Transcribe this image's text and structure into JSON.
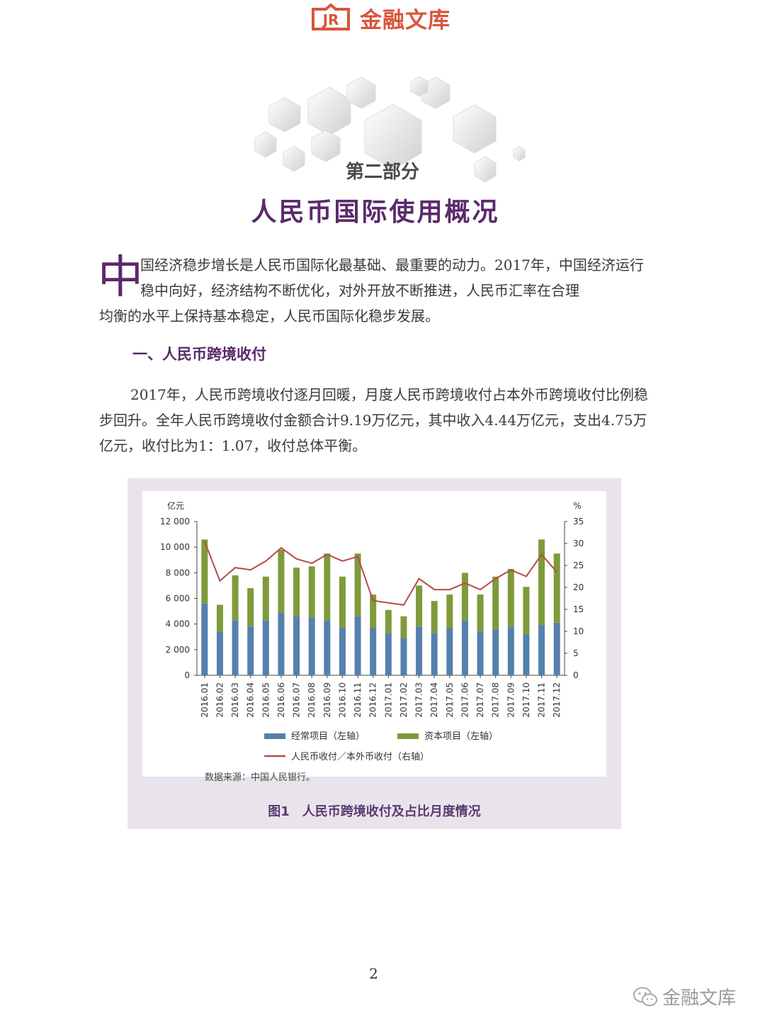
{
  "header": {
    "logo_mark": "JR",
    "logo_text": "金融文库",
    "logo_color": "#d9553a"
  },
  "part_label": "第二部分",
  "section_title": "人民币国际使用概况",
  "intro": {
    "dropcap": "中",
    "line_a": "国经济稳步增长是人民币国际化最基础、最重要的动力。2017年，中国经济运行稳中向好，经济结构不断优化，对外开放不断推进，人民币汇率在合理",
    "line_b": "均衡的水平上保持基本稳定，人民币国际化稳步发展。"
  },
  "subsection_title": "一、人民币跨境收付",
  "body_paragraph": "2017年，人民币跨境收付逐月回暖，月度人民币跨境收付占本外币跨境收付比例稳步回升。全年人民币跨境收付金额合计9.19万亿元，其中收入4.44万亿元，支出4.75万亿元，收付比为1：1.07，收付总体平衡。",
  "figure": {
    "source_note": "数据来源：中国人民银行。",
    "caption": "图1　人民币跨境收付及占比月度情况"
  },
  "chart_data": {
    "type": "bar",
    "stacked": true,
    "categories": [
      "2016.01",
      "2016.02",
      "2016.03",
      "2016.04",
      "2016.05",
      "2016.06",
      "2016.07",
      "2016.08",
      "2016.09",
      "2016.10",
      "2016.11",
      "2016.12",
      "2017.01",
      "2017.02",
      "2017.03",
      "2017.04",
      "2017.05",
      "2017.06",
      "2017.07",
      "2017.08",
      "2017.09",
      "2017.10",
      "2017.11",
      "2017.12"
    ],
    "y_left": {
      "label": "亿元",
      "ticks": [
        "0",
        "2 000",
        "4 000",
        "6 000",
        "8 000",
        "10 000",
        "12 000"
      ],
      "range": [
        0,
        12000
      ]
    },
    "y_right": {
      "label": "%",
      "ticks": [
        "0",
        "5",
        "10",
        "15",
        "20",
        "25",
        "30",
        "35"
      ],
      "range": [
        0,
        35
      ]
    },
    "series": [
      {
        "name": "经常项目（左轴）",
        "axis": "left",
        "color": "#5580ad",
        "values": [
          5600,
          3400,
          4300,
          3800,
          4300,
          4900,
          4600,
          4500,
          4300,
          3700,
          4600,
          3700,
          3300,
          2900,
          3800,
          3300,
          3700,
          4300,
          3400,
          3600,
          3800,
          3200,
          3900,
          4100
        ]
      },
      {
        "name": "资本项目（左轴）",
        "axis": "left",
        "color": "#7f9a3c",
        "values": [
          5000,
          2100,
          3500,
          3000,
          3400,
          4900,
          3800,
          4000,
          5200,
          4000,
          4900,
          2600,
          1800,
          1700,
          3200,
          2500,
          2600,
          3700,
          2900,
          4100,
          4500,
          3700,
          6700,
          5400
        ]
      },
      {
        "name": "人民币收付／本外币收付（右轴）",
        "axis": "right",
        "color": "#b84a4a",
        "type": "line",
        "values": [
          30.5,
          21.5,
          24.5,
          24,
          26,
          29,
          26.5,
          25.5,
          27.5,
          26,
          27,
          17,
          16.5,
          16,
          22,
          19.5,
          19.5,
          21,
          19.5,
          22,
          24,
          22.5,
          27.5,
          23.5
        ]
      }
    ]
  },
  "page_number": "2",
  "watermark": {
    "text": "金融文库"
  }
}
